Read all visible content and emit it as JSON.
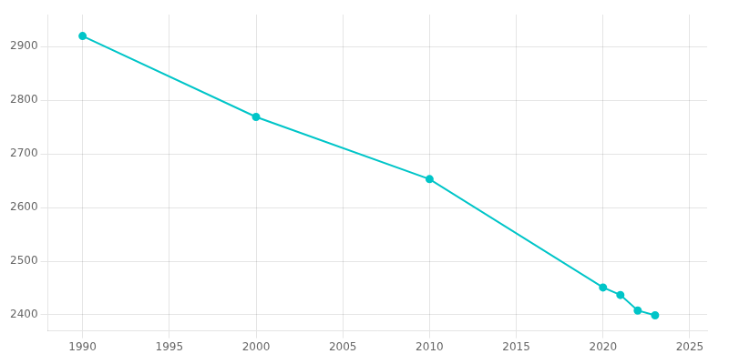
{
  "chart_data": {
    "type": "line",
    "x": [
      1990,
      2000,
      2010,
      2020,
      2021,
      2022,
      2023
    ],
    "values": [
      2920,
      2769,
      2653,
      2451,
      2437,
      2408,
      2399
    ],
    "color": "#00C5C8",
    "marker": "circle",
    "xlim": [
      1988,
      2026
    ],
    "ylim": [
      2370,
      2960
    ],
    "xticks": [
      1990,
      1995,
      2000,
      2005,
      2010,
      2015,
      2020,
      2025
    ],
    "yticks": [
      2400,
      2500,
      2600,
      2700,
      2800,
      2900
    ],
    "grid": true
  }
}
